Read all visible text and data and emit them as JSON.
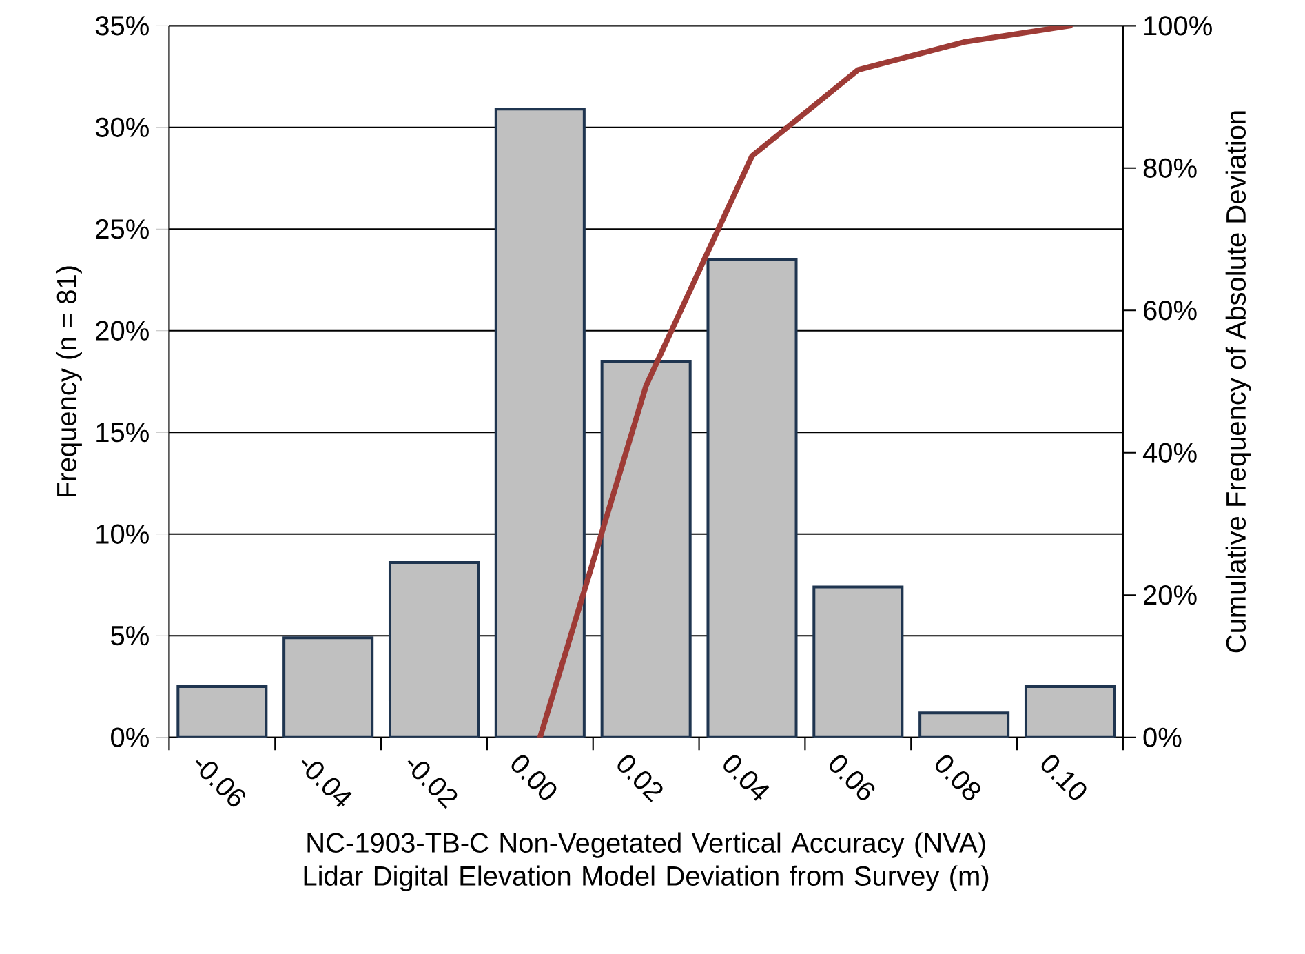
{
  "chart_data": {
    "type": "bar",
    "xlabel": "NC-1903-TB-C Non-Vegetated Vertical Accuracy (NVA) Lidar Digital Elevation Model Deviation from Survey (m)",
    "ylabel": "Frequency (n = 81)",
    "y2label": "Cumulative Frequency of Absolute Deviation",
    "categories": [
      "-0.06",
      "-0.04",
      "-0.02",
      "0.00",
      "0.02",
      "0.04",
      "0.06",
      "0.08",
      "0.10"
    ],
    "series": [
      {
        "color": "#c0c0c0",
        "values": [
          2.5,
          4.9,
          8.6,
          30.9,
          18.5,
          23.5,
          7.4,
          1.2,
          2.5
        ]
      },
      {
        "type": "line",
        "axis": "y2",
        "color": "#9e3b36",
        "values": [
          null,
          null,
          null,
          0,
          49.4,
          81.7,
          93.8,
          97.7,
          100
        ]
      }
    ],
    "ylim": [
      0,
      35
    ],
    "yticks": [
      {
        "value": 0,
        "label": "0%"
      },
      {
        "value": 5,
        "label": "5%"
      },
      {
        "value": 10,
        "label": "10%"
      },
      {
        "value": 15,
        "label": "15%"
      },
      {
        "value": 20,
        "label": "20%"
      },
      {
        "value": 25,
        "label": "25%"
      },
      {
        "value": 30,
        "label": "30%"
      },
      {
        "value": 35,
        "label": "35%"
      }
    ],
    "y2lim": [
      0,
      100
    ],
    "y2ticks": [
      {
        "value": 0,
        "label": "0%"
      },
      {
        "value": 20,
        "label": "20%"
      },
      {
        "value": 40,
        "label": "40%"
      },
      {
        "value": 60,
        "label": "60%"
      },
      {
        "value": 80,
        "label": "80%"
      },
      {
        "value": 100,
        "label": "100%"
      }
    ],
    "grid": "y"
  }
}
